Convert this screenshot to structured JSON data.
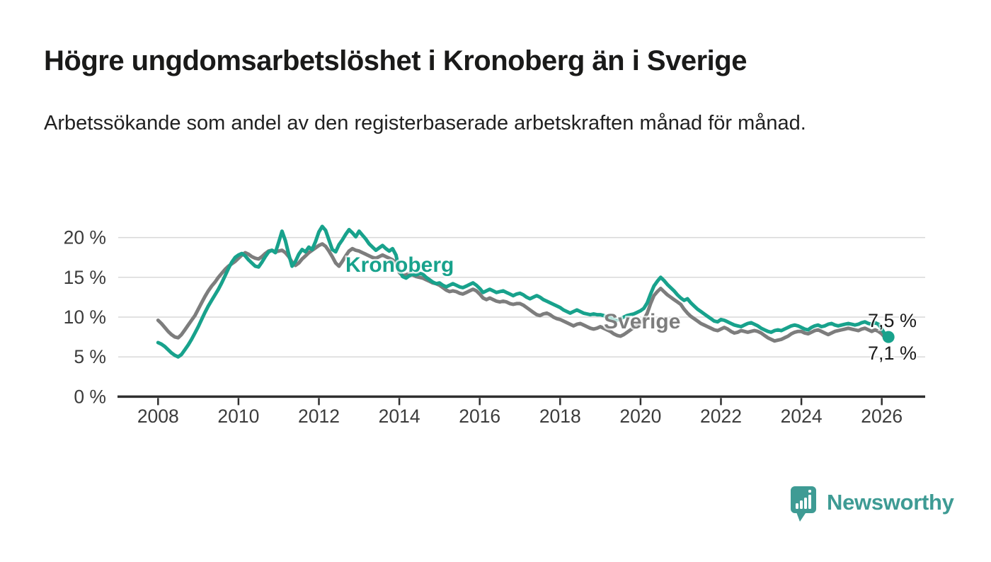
{
  "header": {
    "title": "Högre ungdomsarbetslöshet i Kronoberg än i Sverige",
    "subtitle": "Arbetssökande som andel av den registerbaserade arbetskraften månad för månad."
  },
  "chart_data": {
    "type": "line",
    "title": "Högre ungdomsarbetslöshet i Kronoberg än i Sverige",
    "subtitle": "Arbetssökande som andel av den registerbaserade arbetskraften månad för månad.",
    "x_start": "2008-01",
    "x_end": "2026-03",
    "frequency": "monthly",
    "x_tick_labels": [
      "2008",
      "2010",
      "2012",
      "2014",
      "2016",
      "2018",
      "2020",
      "2022",
      "2024",
      "2026"
    ],
    "x_tick_years": [
      2008,
      2010,
      2012,
      2014,
      2016,
      2018,
      2020,
      2022,
      2024,
      2026
    ],
    "y_ticks": [
      {
        "value": 0,
        "label": "0 %"
      },
      {
        "value": 5,
        "label": "5 %"
      },
      {
        "value": 10,
        "label": "10 %"
      },
      {
        "value": 15,
        "label": "15 %"
      },
      {
        "value": 20,
        "label": "20 %"
      }
    ],
    "ylim": [
      0,
      22.5
    ],
    "grid": "horizontal",
    "legend_position": "inline-labels",
    "series": [
      {
        "name": "Sverige",
        "color": "#7d7d7d",
        "values": [
          9.6,
          9.2,
          8.7,
          8.2,
          7.8,
          7.5,
          7.4,
          7.8,
          8.4,
          9.0,
          9.6,
          10.2,
          11.0,
          11.8,
          12.6,
          13.3,
          13.9,
          14.4,
          15.0,
          15.5,
          16.0,
          16.4,
          16.7,
          17.0,
          17.4,
          17.8,
          18.1,
          17.9,
          17.6,
          17.4,
          17.3,
          17.6,
          18.0,
          18.3,
          18.4,
          18.2,
          18.3,
          18.4,
          18.1,
          17.6,
          16.9,
          16.5,
          16.8,
          17.3,
          17.7,
          18.1,
          18.4,
          18.7,
          19.0,
          19.2,
          18.9,
          18.3,
          17.6,
          16.8,
          16.4,
          17.0,
          17.7,
          18.3,
          18.6,
          18.4,
          18.3,
          18.1,
          17.9,
          17.7,
          17.5,
          17.4,
          17.6,
          17.8,
          17.6,
          17.4,
          17.2,
          16.8,
          15.6,
          15.2,
          15.3,
          15.5,
          15.3,
          15.1,
          15.0,
          14.9,
          14.7,
          14.5,
          14.3,
          14.2,
          14.0,
          13.7,
          13.4,
          13.2,
          13.3,
          13.2,
          13.0,
          12.9,
          13.1,
          13.3,
          13.5,
          13.3,
          12.9,
          12.4,
          12.2,
          12.4,
          12.2,
          12.0,
          11.9,
          12.0,
          11.9,
          11.7,
          11.6,
          11.7,
          11.7,
          11.5,
          11.2,
          10.9,
          10.6,
          10.3,
          10.2,
          10.4,
          10.5,
          10.3,
          10.0,
          9.8,
          9.7,
          9.5,
          9.3,
          9.1,
          8.9,
          9.1,
          9.2,
          9.0,
          8.8,
          8.6,
          8.5,
          8.6,
          8.8,
          8.6,
          8.4,
          8.2,
          7.9,
          7.7,
          7.6,
          7.8,
          8.1,
          8.4,
          8.7,
          9.0,
          9.3,
          9.7,
          10.5,
          11.7,
          12.7,
          13.2,
          13.6,
          13.2,
          12.8,
          12.5,
          12.2,
          11.9,
          11.6,
          11.0,
          10.5,
          10.1,
          9.8,
          9.5,
          9.2,
          9.0,
          8.8,
          8.6,
          8.4,
          8.3,
          8.5,
          8.7,
          8.5,
          8.2,
          8.0,
          8.1,
          8.3,
          8.2,
          8.1,
          8.2,
          8.3,
          8.2,
          8.0,
          7.7,
          7.4,
          7.2,
          7.0,
          7.1,
          7.2,
          7.4,
          7.6,
          7.9,
          8.1,
          8.2,
          8.2,
          8.0,
          7.9,
          8.1,
          8.3,
          8.4,
          8.2,
          8.0,
          7.8,
          8.0,
          8.2,
          8.3,
          8.4,
          8.5,
          8.6,
          8.5,
          8.4,
          8.3,
          8.5,
          8.6,
          8.4,
          8.2,
          8.4,
          8.2,
          7.9,
          7.4,
          7.1
        ]
      },
      {
        "name": "Kronoberg",
        "color": "#18a28c",
        "values": [
          6.8,
          6.6,
          6.3,
          5.9,
          5.5,
          5.2,
          5.0,
          5.3,
          5.9,
          6.5,
          7.2,
          8.0,
          8.8,
          9.7,
          10.6,
          11.4,
          12.1,
          12.8,
          13.5,
          14.3,
          15.2,
          16.1,
          16.9,
          17.5,
          17.8,
          18.0,
          17.7,
          17.2,
          16.8,
          16.4,
          16.3,
          16.9,
          17.6,
          18.2,
          18.4,
          18.1,
          19.4,
          20.8,
          19.6,
          17.9,
          16.4,
          17.0,
          17.9,
          18.5,
          18.2,
          18.8,
          18.5,
          19.5,
          20.7,
          21.4,
          20.9,
          19.7,
          18.5,
          18.2,
          19.1,
          19.7,
          20.4,
          21.0,
          20.6,
          20.1,
          20.8,
          20.3,
          19.8,
          19.2,
          18.8,
          18.4,
          18.7,
          19.0,
          18.6,
          18.3,
          18.6,
          17.8,
          15.9,
          15.1,
          14.9,
          15.2,
          15.4,
          15.3,
          15.5,
          15.4,
          15.0,
          14.7,
          14.4,
          14.2,
          14.3,
          14.0,
          13.8,
          14.0,
          14.2,
          14.0,
          13.8,
          13.7,
          13.9,
          14.1,
          14.3,
          14.0,
          13.6,
          13.1,
          13.3,
          13.5,
          13.3,
          13.1,
          13.2,
          13.3,
          13.1,
          12.9,
          12.7,
          12.9,
          13.0,
          12.8,
          12.5,
          12.3,
          12.5,
          12.7,
          12.5,
          12.2,
          12.0,
          11.8,
          11.6,
          11.4,
          11.2,
          10.9,
          10.7,
          10.5,
          10.7,
          10.9,
          10.7,
          10.5,
          10.4,
          10.3,
          10.4,
          10.3,
          10.3,
          10.2,
          10.0,
          9.9,
          9.7,
          9.6,
          9.8,
          10.0,
          10.2,
          10.3,
          10.4,
          10.6,
          10.8,
          11.1,
          11.8,
          12.9,
          13.9,
          14.5,
          15.0,
          14.6,
          14.1,
          13.7,
          13.3,
          12.8,
          12.4,
          12.1,
          12.3,
          11.8,
          11.4,
          11.0,
          10.7,
          10.4,
          10.1,
          9.8,
          9.5,
          9.4,
          9.7,
          9.6,
          9.4,
          9.2,
          9.0,
          8.9,
          8.8,
          9.0,
          9.2,
          9.3,
          9.1,
          8.9,
          8.6,
          8.4,
          8.2,
          8.1,
          8.3,
          8.4,
          8.3,
          8.5,
          8.7,
          8.9,
          9.0,
          8.9,
          8.7,
          8.5,
          8.4,
          8.7,
          8.9,
          9.0,
          8.8,
          8.9,
          9.1,
          9.2,
          9.0,
          8.9,
          9.0,
          9.1,
          9.2,
          9.1,
          9.0,
          9.1,
          9.3,
          9.4,
          9.2,
          9.1,
          9.3,
          9.1,
          8.5,
          7.8,
          7.5
        ]
      }
    ],
    "annotations": {
      "series_labels": [
        {
          "series": "Kronoberg",
          "text": "Kronoberg"
        },
        {
          "series": "Sverige",
          "text": "Sverige"
        }
      ],
      "end_value_labels": [
        {
          "series": "Kronoberg",
          "text": "7,5 %"
        },
        {
          "series": "Sverige",
          "text": "7,1 %"
        }
      ]
    }
  },
  "footer": {
    "brand": "Newsworthy"
  },
  "colors": {
    "kronoberg": "#18a28c",
    "sverige": "#7d7d7d",
    "brand_teal": "#3e9b94",
    "title_text": "#1a1a19",
    "axis_text": "#3c3c3c",
    "gridline": "#d8d8d8",
    "axis_line": "#2f2f2f",
    "end_label_text": "#1a1a1a"
  }
}
